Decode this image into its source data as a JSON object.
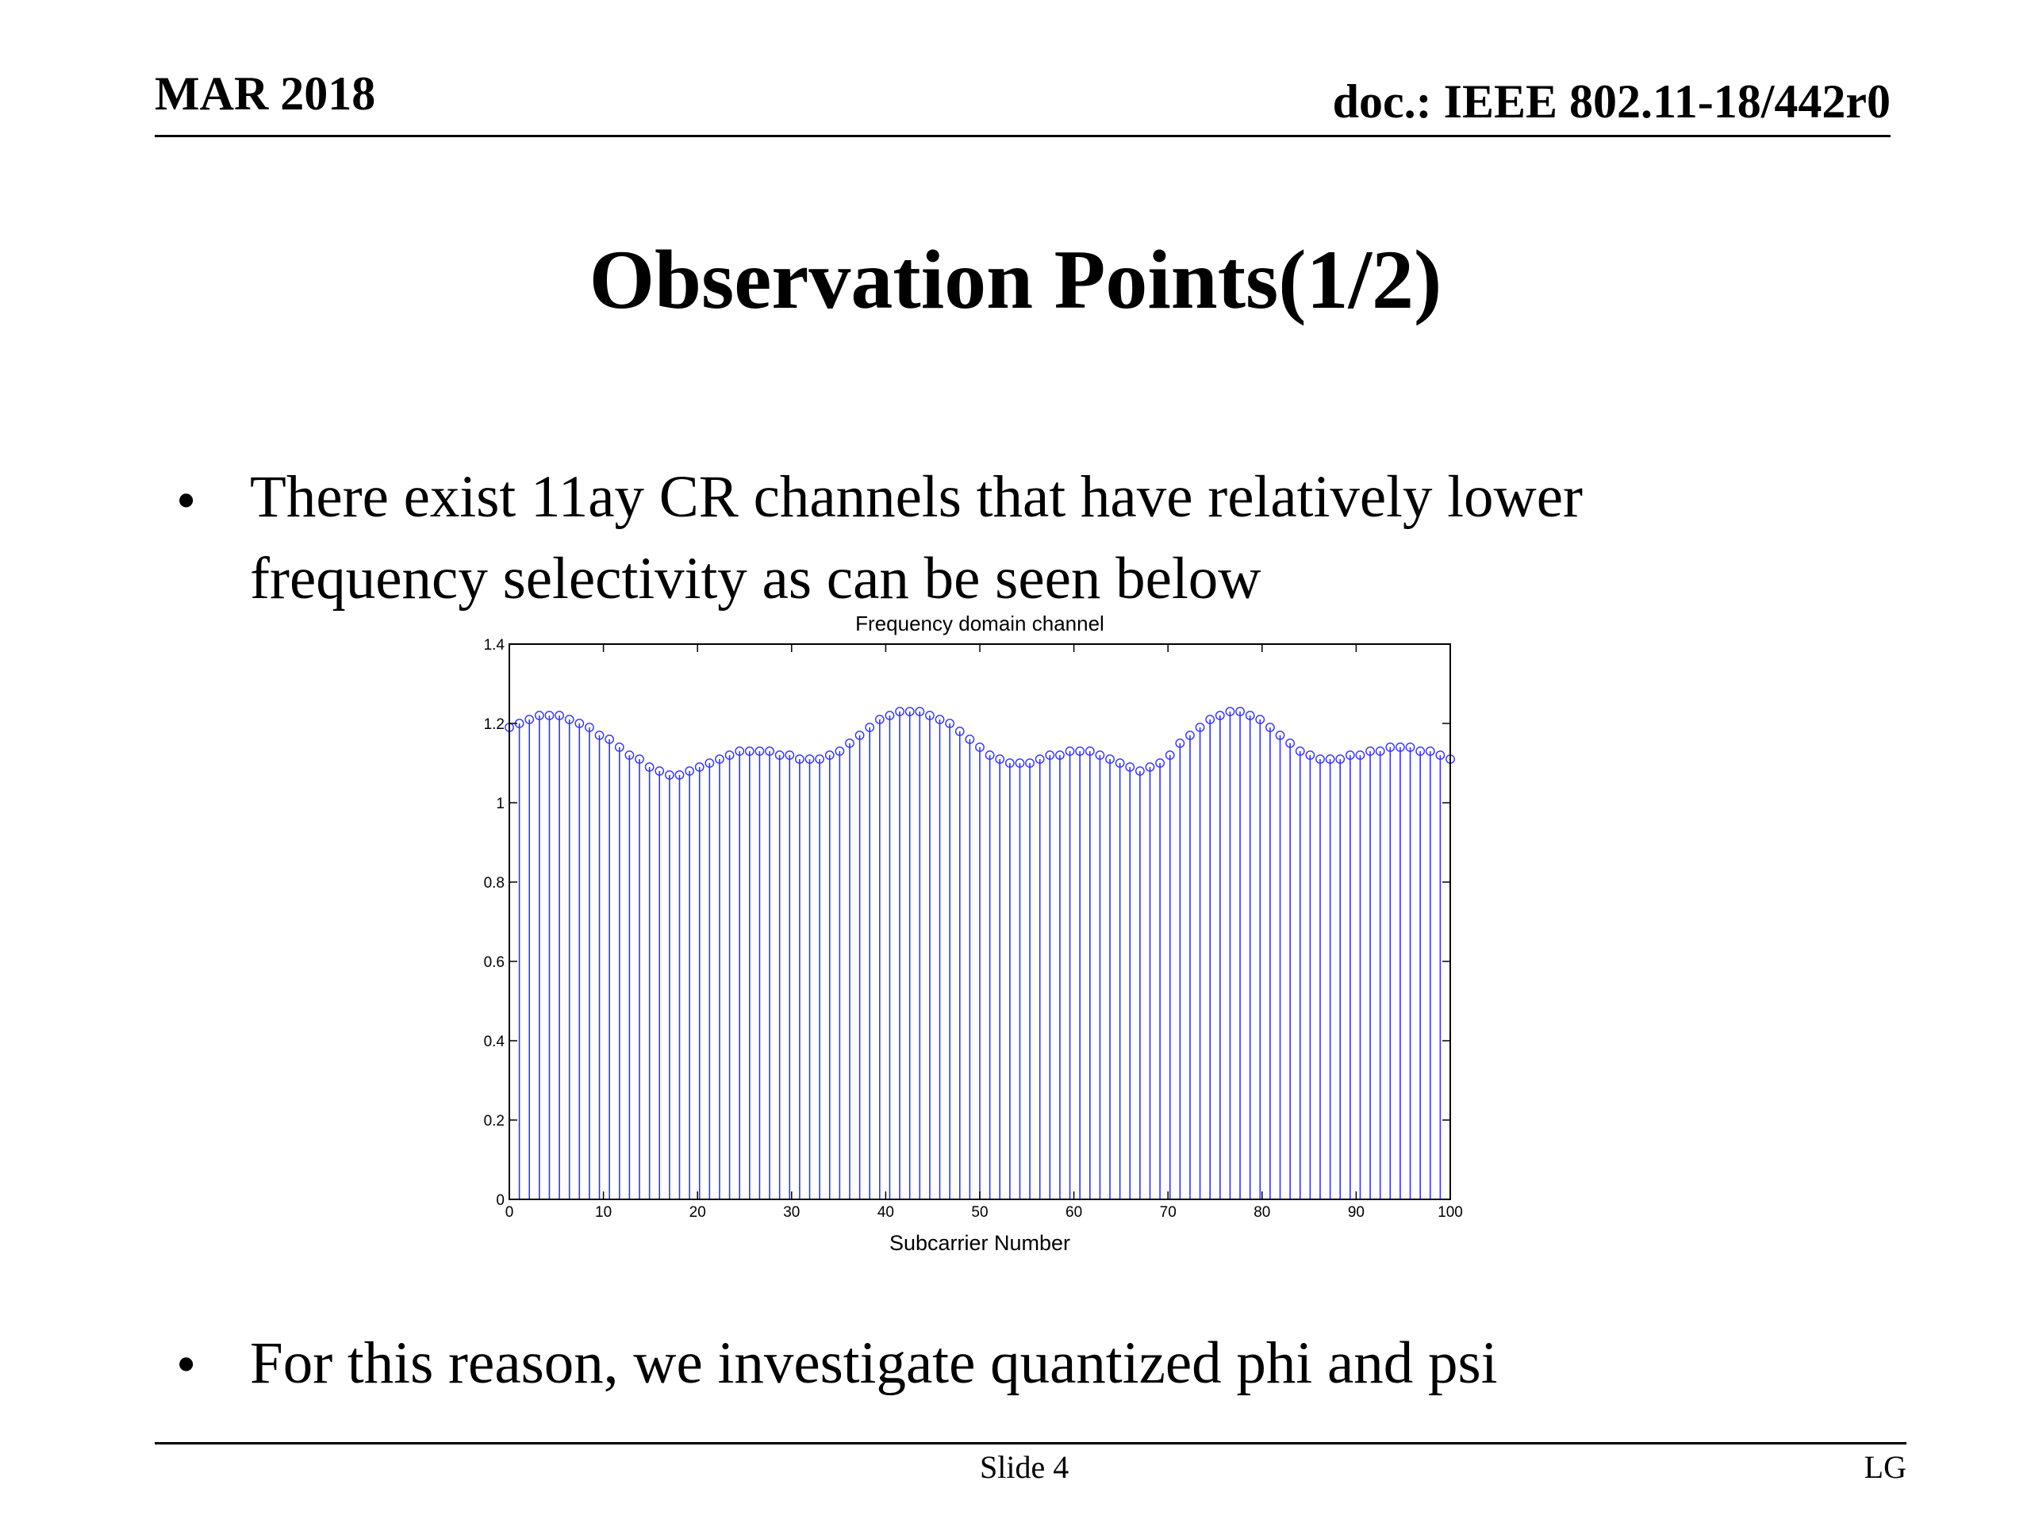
{
  "header": {
    "date": "MAR 2018",
    "doc_id": "doc.: IEEE 802.11-18/442r0"
  },
  "slide": {
    "title": "Observation Points(1/2)",
    "bullets": [
      {
        "symbol": "•",
        "lines": [
          "There exist 11ay CR channels that have relatively lower",
          "frequency selectivity as can be seen below"
        ]
      },
      {
        "symbol": "•",
        "lines": [
          "For this reason, we investigate quantized phi and psi"
        ]
      }
    ]
  },
  "footer": {
    "slide_label": "Slide 4",
    "org": "LG"
  },
  "colors": {
    "series": "#3333ff",
    "axes": "#000000"
  },
  "chart_data": {
    "type": "stem",
    "title": "Frequency domain channel",
    "xlabel": "Subcarrier Number",
    "ylabel": "",
    "xlim": [
      0,
      100
    ],
    "ylim": [
      0,
      1.4
    ],
    "xticks": [
      0,
      10,
      20,
      30,
      40,
      50,
      60,
      70,
      80,
      90,
      100
    ],
    "yticks": [
      0,
      0.2,
      0.4,
      0.6,
      0.8,
      1,
      1.2,
      1.4
    ],
    "ytick_labels": [
      "0",
      "0.2",
      "0.4",
      "0.6",
      "0.8",
      "1",
      "1.2",
      "1.4"
    ],
    "grid": false,
    "marker": "circle",
    "series": [
      {
        "values": [
          1.19,
          1.2,
          1.21,
          1.22,
          1.22,
          1.22,
          1.21,
          1.2,
          1.19,
          1.17,
          1.16,
          1.14,
          1.12,
          1.11,
          1.09,
          1.08,
          1.07,
          1.07,
          1.08,
          1.09,
          1.1,
          1.11,
          1.12,
          1.13,
          1.13,
          1.13,
          1.13,
          1.12,
          1.12,
          1.11,
          1.11,
          1.11,
          1.12,
          1.13,
          1.15,
          1.17,
          1.19,
          1.21,
          1.22,
          1.23,
          1.23,
          1.23,
          1.22,
          1.21,
          1.2,
          1.18,
          1.16,
          1.14,
          1.12,
          1.11,
          1.1,
          1.1,
          1.1,
          1.11,
          1.12,
          1.12,
          1.13,
          1.13,
          1.13,
          1.12,
          1.11,
          1.1,
          1.09,
          1.08,
          1.09,
          1.1,
          1.12,
          1.15,
          1.17,
          1.19,
          1.21,
          1.22,
          1.23,
          1.23,
          1.22,
          1.21,
          1.19,
          1.17,
          1.15,
          1.13,
          1.12,
          1.11,
          1.11,
          1.11,
          1.12,
          1.12,
          1.13,
          1.13,
          1.14,
          1.14,
          1.14,
          1.13,
          1.13,
          1.12,
          1.11
        ]
      }
    ]
  }
}
